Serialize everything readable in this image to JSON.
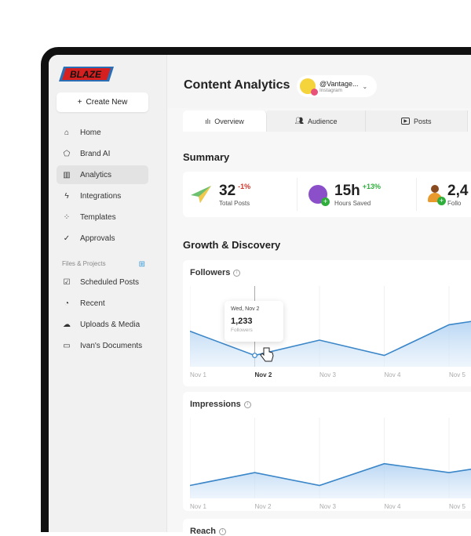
{
  "sidebar": {
    "logo_text": "BLAZE",
    "create_label": "Create New",
    "items": [
      {
        "label": "Home",
        "icon": "home-icon"
      },
      {
        "label": "Brand AI",
        "icon": "tag-icon"
      },
      {
        "label": "Analytics",
        "icon": "analytics-icon",
        "active": true
      },
      {
        "label": "Integrations",
        "icon": "lightning-icon"
      },
      {
        "label": "Templates",
        "icon": "templates-icon"
      },
      {
        "label": "Approvals",
        "icon": "check-circle-icon"
      }
    ],
    "section_label": "Files & Projects",
    "files": [
      {
        "label": "Scheduled Posts",
        "icon": "calendar-check-icon"
      },
      {
        "label": "Recent",
        "icon": "folder-clock-icon"
      },
      {
        "label": "Uploads & Media",
        "icon": "cloud-upload-icon"
      },
      {
        "label": "Ivan's Documents",
        "icon": "folder-icon"
      }
    ]
  },
  "header": {
    "title": "Content Analytics",
    "account": {
      "name": "@Vantage...",
      "platform": "Instagram"
    }
  },
  "tabs": [
    {
      "label": "Overview",
      "active": true
    },
    {
      "label": "Audience"
    },
    {
      "label": "Posts"
    }
  ],
  "summary": {
    "title": "Summary",
    "stats": [
      {
        "value": "32",
        "change": "-1%",
        "label": "Total Posts",
        "change_color": "#d0352b"
      },
      {
        "value": "15h",
        "change": "+13%",
        "label": "Hours Saved",
        "change_color": "#2fae3c"
      },
      {
        "value": "2,4",
        "label": "Follo"
      }
    ]
  },
  "growth": {
    "title": "Growth & Discovery"
  },
  "chart_data": [
    {
      "type": "area",
      "title": "Followers",
      "categories": [
        "Nov 1",
        "Nov 2",
        "Nov 3",
        "Nov 4",
        "Nov 5"
      ],
      "values": [
        44,
        14,
        33,
        14,
        52
      ],
      "ylim": [
        0,
        100
      ],
      "grid": true,
      "tooltip": {
        "date": "Wed, Nov 2",
        "value": "1,233",
        "label": "Followers"
      },
      "highlight": "Nov 2",
      "color": "#3a86c8"
    },
    {
      "type": "area",
      "title": "Impressions",
      "categories": [
        "Nov 1",
        "Nov 2",
        "Nov 3",
        "Nov 4",
        "Nov 5"
      ],
      "values": [
        16,
        32,
        16,
        43,
        32
      ],
      "ylim": [
        0,
        100
      ],
      "grid": true,
      "color": "#3a86c8"
    },
    {
      "type": "area",
      "title": "Reach"
    }
  ]
}
